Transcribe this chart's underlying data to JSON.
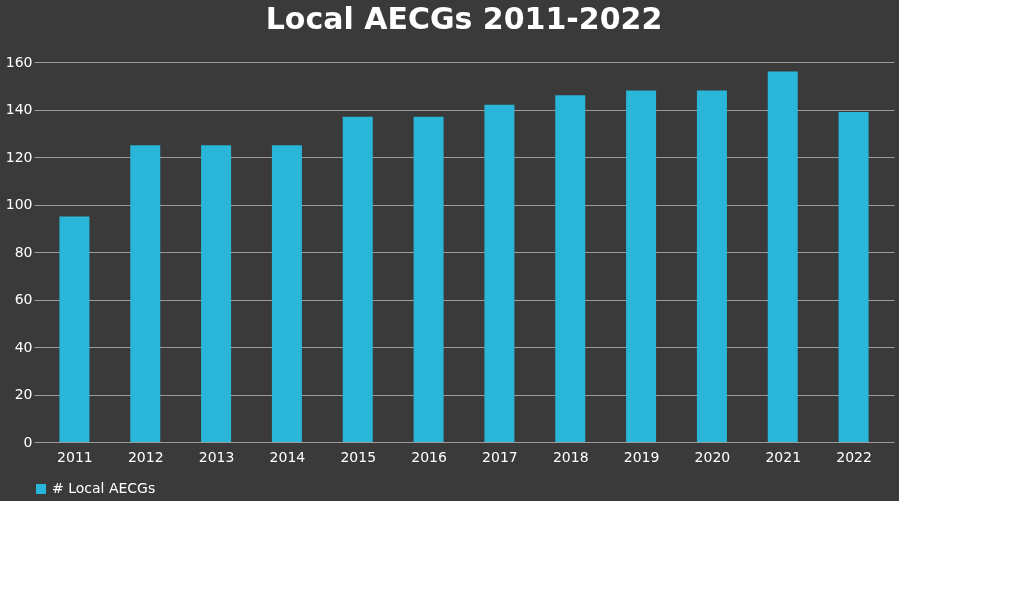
{
  "chart_data": {
    "type": "bar",
    "title": "Local AECGs 2011-2022",
    "categories": [
      "2011",
      "2012",
      "2013",
      "2014",
      "2015",
      "2016",
      "2017",
      "2018",
      "2019",
      "2020",
      "2021",
      "2022"
    ],
    "series": [
      {
        "name": "# Local AECGs",
        "color": "#29b6d8",
        "values": [
          95,
          125,
          125,
          125,
          137,
          137,
          142,
          146,
          148,
          148,
          156,
          139
        ]
      }
    ],
    "ylim": [
      0,
      160
    ],
    "yticks": [
      0,
      20,
      40,
      60,
      80,
      100,
      120,
      140,
      160
    ],
    "grid": "y",
    "legend": "bottom"
  }
}
